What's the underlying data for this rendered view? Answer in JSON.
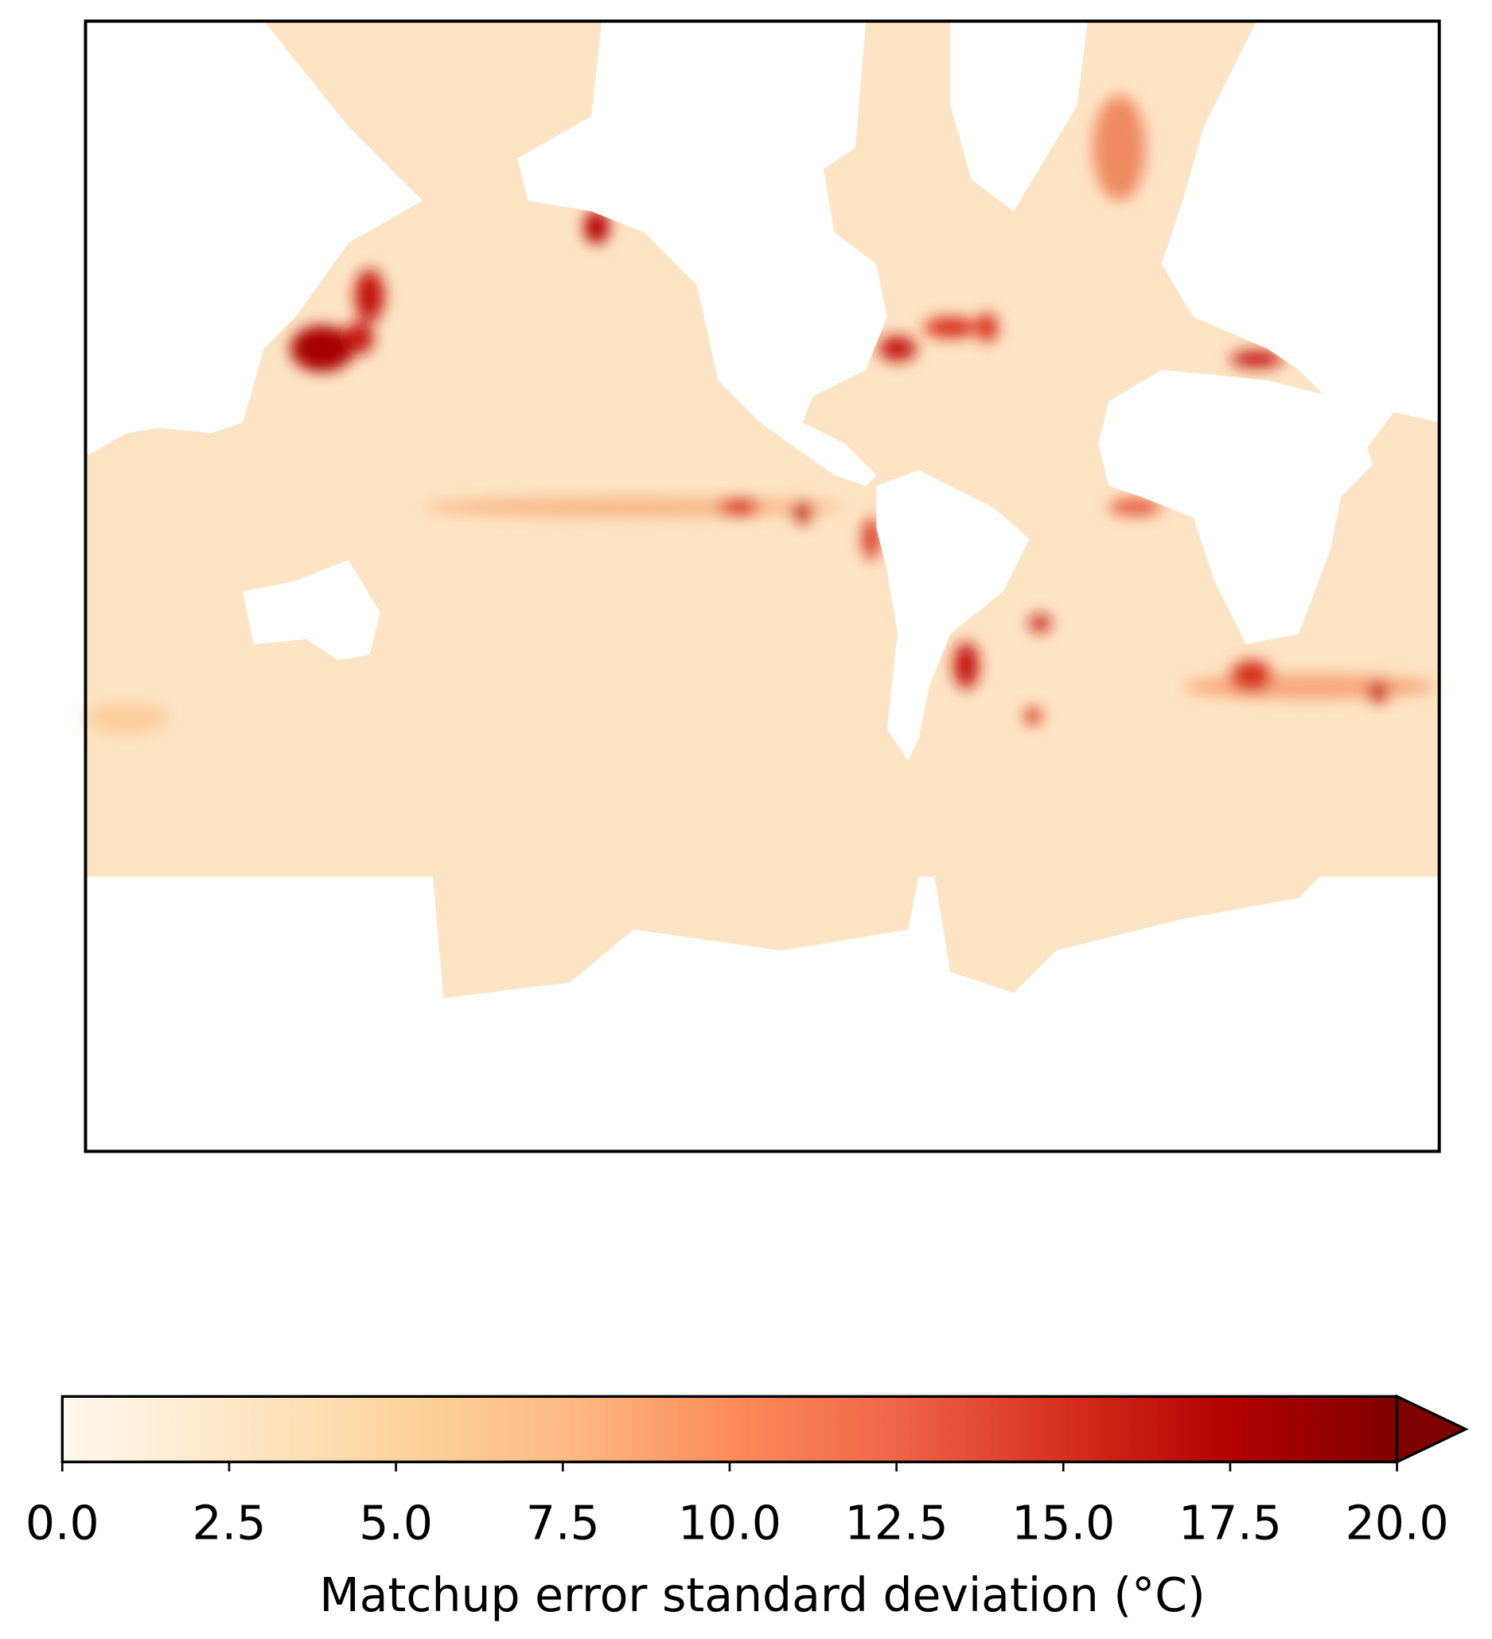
{
  "chart_data": {
    "type": "map",
    "colorbar": {
      "label": "Matchup error standard deviation (°C)",
      "xlim": [
        0,
        20
      ],
      "xticks": [
        {
          "value": 0,
          "label": "0.0"
        },
        {
          "value": 2.5,
          "label": "2.5"
        },
        {
          "value": 5,
          "label": "5.0"
        },
        {
          "value": 7.5,
          "label": "7.5"
        },
        {
          "value": 10,
          "label": "10.0"
        },
        {
          "value": 12.5,
          "label": "12.5"
        },
        {
          "value": 15,
          "label": "15.0"
        },
        {
          "value": 17.5,
          "label": "17.5"
        },
        {
          "value": 20,
          "label": "20.0"
        }
      ],
      "colors": [
        "#fff7ec",
        "#fee8c8",
        "#fdd49e",
        "#fdbb84",
        "#fc8d59",
        "#ef6548",
        "#d7301f",
        "#b30000",
        "#7f0000"
      ],
      "extend": "max"
    }
  }
}
